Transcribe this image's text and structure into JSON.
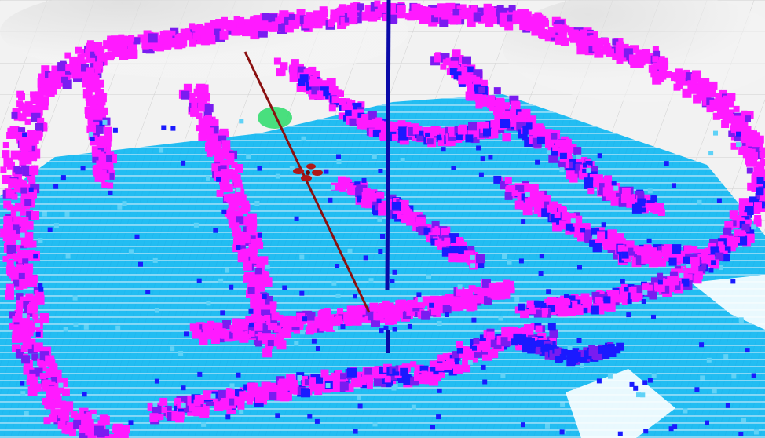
{
  "viewport": {
    "kind": "3d-voxel-occupancy-map",
    "colors": {
      "background": "#f4f4f4",
      "grid": "#c8c8c8",
      "floor": "#1fb8ef",
      "floor_light": "#5fd2f7",
      "low": "#1a1aff",
      "mid": "#7a1cf0",
      "high": "#ff1aff",
      "path": "#8b1010",
      "z_axis": "#0a0aa8",
      "goal": "#2bdc6a",
      "robot": "#b01818"
    },
    "icons": {
      "robot": "quadrotor-icon",
      "axis": "z-axis-line",
      "path": "planned-path-line"
    }
  }
}
